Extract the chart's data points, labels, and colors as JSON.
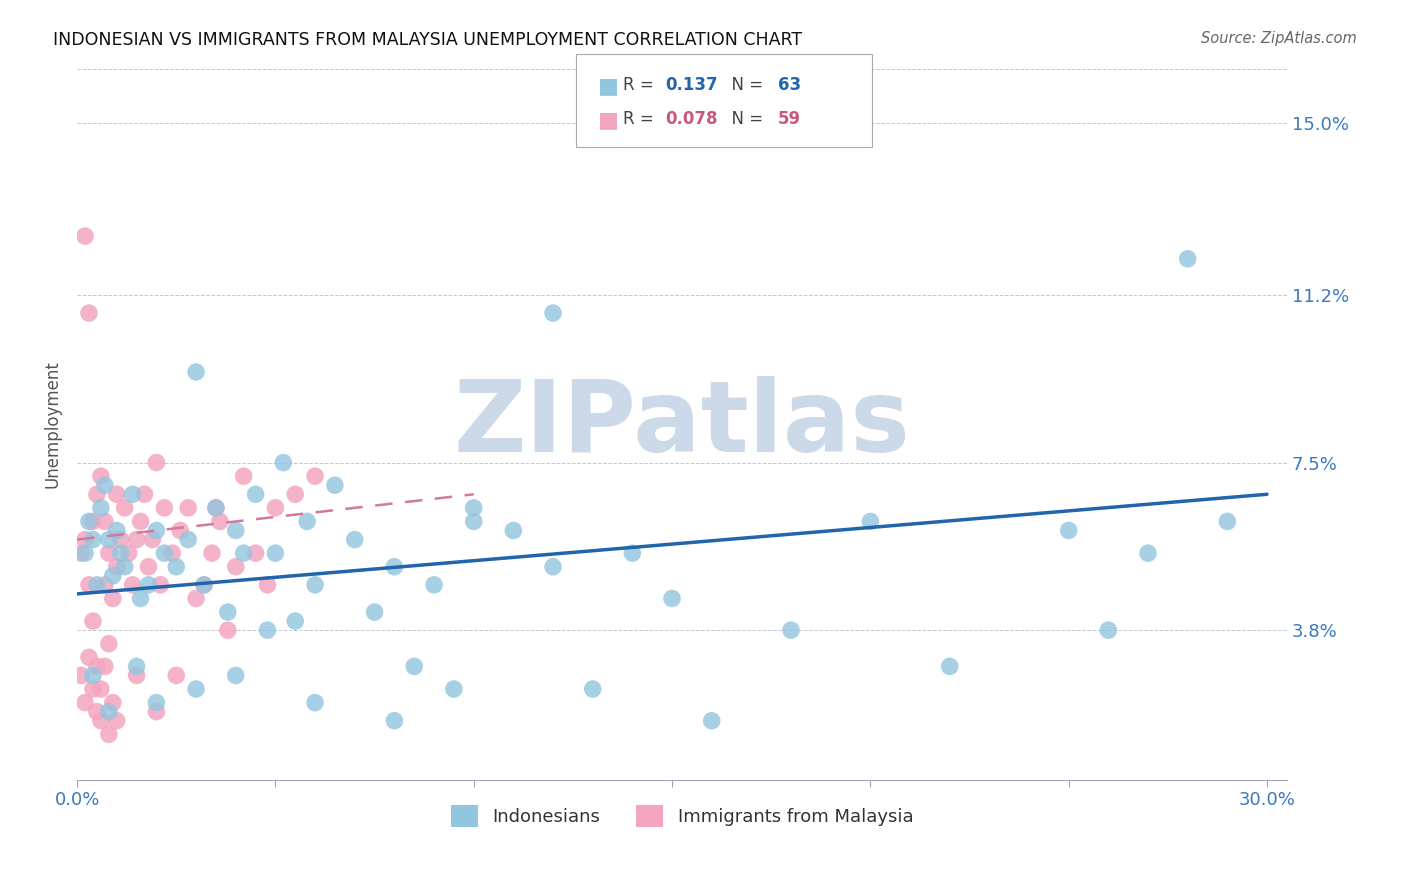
{
  "title": "INDONESIAN VS IMMIGRANTS FROM MALAYSIA UNEMPLOYMENT CORRELATION CHART",
  "source": "Source: ZipAtlas.com",
  "ylabel": "Unemployment",
  "xlim": [
    0.0,
    0.305
  ],
  "ylim": [
    0.005,
    0.162
  ],
  "yticks": [
    0.038,
    0.075,
    0.112,
    0.15
  ],
  "ytick_labels": [
    "3.8%",
    "7.5%",
    "11.2%",
    "15.0%"
  ],
  "xticks": [
    0.0,
    0.05,
    0.1,
    0.15,
    0.2,
    0.25,
    0.3
  ],
  "xtick_labels": [
    "0.0%",
    "",
    "",
    "",
    "",
    "",
    "30.0%"
  ],
  "blue_color": "#92c5de",
  "pink_color": "#f4a6c0",
  "blue_line_color": "#2166ac",
  "pink_line_color": "#d4799a",
  "watermark_color": "#ccd9e8",
  "indonesians_x": [
    0.002,
    0.003,
    0.004,
    0.005,
    0.006,
    0.007,
    0.008,
    0.009,
    0.01,
    0.011,
    0.012,
    0.014,
    0.016,
    0.018,
    0.02,
    0.022,
    0.025,
    0.028,
    0.03,
    0.032,
    0.035,
    0.038,
    0.04,
    0.042,
    0.045,
    0.048,
    0.05,
    0.052,
    0.055,
    0.058,
    0.06,
    0.065,
    0.07,
    0.075,
    0.08,
    0.085,
    0.09,
    0.095,
    0.1,
    0.11,
    0.12,
    0.13,
    0.14,
    0.15,
    0.16,
    0.18,
    0.2,
    0.22,
    0.25,
    0.26,
    0.27,
    0.28,
    0.29,
    0.004,
    0.008,
    0.015,
    0.02,
    0.03,
    0.04,
    0.06,
    0.08,
    0.1,
    0.12
  ],
  "indonesians_y": [
    0.055,
    0.062,
    0.058,
    0.048,
    0.065,
    0.07,
    0.058,
    0.05,
    0.06,
    0.055,
    0.052,
    0.068,
    0.045,
    0.048,
    0.06,
    0.055,
    0.052,
    0.058,
    0.095,
    0.048,
    0.065,
    0.042,
    0.06,
    0.055,
    0.068,
    0.038,
    0.055,
    0.075,
    0.04,
    0.062,
    0.048,
    0.07,
    0.058,
    0.042,
    0.052,
    0.03,
    0.048,
    0.025,
    0.065,
    0.06,
    0.052,
    0.025,
    0.055,
    0.045,
    0.018,
    0.038,
    0.062,
    0.03,
    0.06,
    0.038,
    0.055,
    0.12,
    0.062,
    0.028,
    0.02,
    0.03,
    0.022,
    0.025,
    0.028,
    0.022,
    0.018,
    0.062,
    0.108
  ],
  "malaysia_x": [
    0.001,
    0.002,
    0.002,
    0.003,
    0.003,
    0.004,
    0.004,
    0.005,
    0.005,
    0.006,
    0.006,
    0.007,
    0.007,
    0.008,
    0.008,
    0.009,
    0.01,
    0.01,
    0.011,
    0.012,
    0.013,
    0.014,
    0.015,
    0.016,
    0.017,
    0.018,
    0.019,
    0.02,
    0.021,
    0.022,
    0.024,
    0.026,
    0.028,
    0.03,
    0.032,
    0.034,
    0.036,
    0.038,
    0.04,
    0.042,
    0.045,
    0.048,
    0.05,
    0.055,
    0.06,
    0.001,
    0.002,
    0.003,
    0.004,
    0.005,
    0.006,
    0.007,
    0.008,
    0.009,
    0.01,
    0.015,
    0.02,
    0.025,
    0.035
  ],
  "malaysia_y": [
    0.055,
    0.125,
    0.058,
    0.108,
    0.048,
    0.04,
    0.062,
    0.03,
    0.068,
    0.025,
    0.072,
    0.048,
    0.062,
    0.035,
    0.055,
    0.045,
    0.068,
    0.052,
    0.058,
    0.065,
    0.055,
    0.048,
    0.058,
    0.062,
    0.068,
    0.052,
    0.058,
    0.075,
    0.048,
    0.065,
    0.055,
    0.06,
    0.065,
    0.045,
    0.048,
    0.055,
    0.062,
    0.038,
    0.052,
    0.072,
    0.055,
    0.048,
    0.065,
    0.068,
    0.072,
    0.028,
    0.022,
    0.032,
    0.025,
    0.02,
    0.018,
    0.03,
    0.015,
    0.022,
    0.018,
    0.028,
    0.02,
    0.028,
    0.065
  ],
  "blue_line_x0": 0.0,
  "blue_line_y0": 0.046,
  "blue_line_x1": 0.3,
  "blue_line_y1": 0.068,
  "pink_line_x0": 0.0,
  "pink_line_y0": 0.058,
  "pink_line_x1": 0.1,
  "pink_line_y1": 0.068,
  "figsize": [
    14.06,
    8.92
  ],
  "dpi": 100
}
